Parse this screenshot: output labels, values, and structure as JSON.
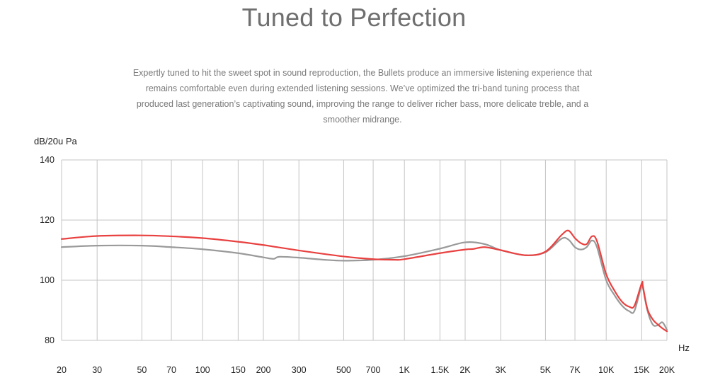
{
  "page": {
    "title": "Tuned to Perfection",
    "description": "Expertly tuned to hit the sweet spot in sound reproduction, the Bullets produce an immersive listening experience that remains comfortable even during extended listening sessions. We’ve optimized the tri-band tuning process that produced last generation’s captivating sound, improving the range to deliver richer bass, more delicate treble, and a smoother midrange."
  },
  "colors": {
    "series_new": "#e84140",
    "series_old": "#9a9a9a",
    "grid": "#c4c4c4",
    "axis_text": "#222222"
  },
  "chart_data": {
    "type": "line",
    "ylabel": "dB/20u Pa",
    "xlabel": "Hz",
    "xscale": "log",
    "xlim": [
      20,
      20000
    ],
    "ylim": [
      80,
      140
    ],
    "grid": true,
    "x_ticks": [
      20,
      30,
      50,
      70,
      100,
      150,
      200,
      300,
      500,
      700,
      1000,
      1500,
      2000,
      3000,
      5000,
      7000,
      10000,
      15000,
      20000
    ],
    "x_tick_labels": [
      "20",
      "30",
      "50",
      "70",
      "100",
      "150",
      "200",
      "300",
      "500",
      "700",
      "1K",
      "1.5K",
      "2K",
      "3K",
      "5K",
      "7K",
      "10K",
      "15K",
      "20K"
    ],
    "y_ticks": [
      80,
      100,
      120,
      140
    ],
    "y_tick_labels": [
      "80",
      "100",
      "120",
      "140"
    ],
    "series": [
      {
        "color": "#9a9a9a",
        "points": [
          [
            20,
            111.0
          ],
          [
            30,
            111.5
          ],
          [
            50,
            111.5
          ],
          [
            70,
            111.0
          ],
          [
            100,
            110.3
          ],
          [
            150,
            109.0
          ],
          [
            200,
            107.6
          ],
          [
            225,
            107.1
          ],
          [
            240,
            107.8
          ],
          [
            300,
            107.5
          ],
          [
            400,
            106.8
          ],
          [
            500,
            106.5
          ],
          [
            700,
            106.8
          ],
          [
            1000,
            108.0
          ],
          [
            1500,
            110.5
          ],
          [
            2000,
            112.6
          ],
          [
            2500,
            112.0
          ],
          [
            3000,
            110.0
          ],
          [
            4000,
            108.3
          ],
          [
            5000,
            109.3
          ],
          [
            6000,
            113.8
          ],
          [
            6500,
            113.5
          ],
          [
            7000,
            111.0
          ],
          [
            7500,
            110.2
          ],
          [
            8000,
            111.0
          ],
          [
            8500,
            113.2
          ],
          [
            9000,
            111.0
          ],
          [
            10000,
            100.0
          ],
          [
            11000,
            95.0
          ],
          [
            12000,
            91.5
          ],
          [
            13000,
            89.7
          ],
          [
            13800,
            89.8
          ],
          [
            15000,
            98.5
          ],
          [
            15200,
            97.5
          ],
          [
            16000,
            90.0
          ],
          [
            17000,
            85.3
          ],
          [
            18000,
            85.0
          ],
          [
            19000,
            86.0
          ],
          [
            20000,
            83.5
          ]
        ]
      },
      {
        "color": "#e84140",
        "points": [
          [
            20,
            113.7
          ],
          [
            30,
            114.7
          ],
          [
            50,
            114.9
          ],
          [
            70,
            114.6
          ],
          [
            100,
            114.0
          ],
          [
            150,
            112.8
          ],
          [
            200,
            111.7
          ],
          [
            300,
            109.9
          ],
          [
            500,
            107.9
          ],
          [
            700,
            107.0
          ],
          [
            900,
            106.8
          ],
          [
            1000,
            107.0
          ],
          [
            1500,
            109.0
          ],
          [
            2000,
            110.2
          ],
          [
            2200,
            110.4
          ],
          [
            2500,
            111.0
          ],
          [
            3000,
            110.0
          ],
          [
            4000,
            108.3
          ],
          [
            5000,
            109.5
          ],
          [
            6000,
            115.0
          ],
          [
            6500,
            116.5
          ],
          [
            7000,
            114.0
          ],
          [
            7500,
            112.3
          ],
          [
            8000,
            112.0
          ],
          [
            8500,
            114.6
          ],
          [
            9000,
            113.0
          ],
          [
            10000,
            102.0
          ],
          [
            11000,
            96.5
          ],
          [
            12000,
            92.8
          ],
          [
            13000,
            91.2
          ],
          [
            13800,
            91.5
          ],
          [
            15000,
            99.0
          ],
          [
            15200,
            98.0
          ],
          [
            16000,
            90.5
          ],
          [
            17000,
            87.0
          ],
          [
            18000,
            85.3
          ],
          [
            19000,
            84.0
          ],
          [
            20000,
            83.0
          ]
        ]
      }
    ]
  }
}
